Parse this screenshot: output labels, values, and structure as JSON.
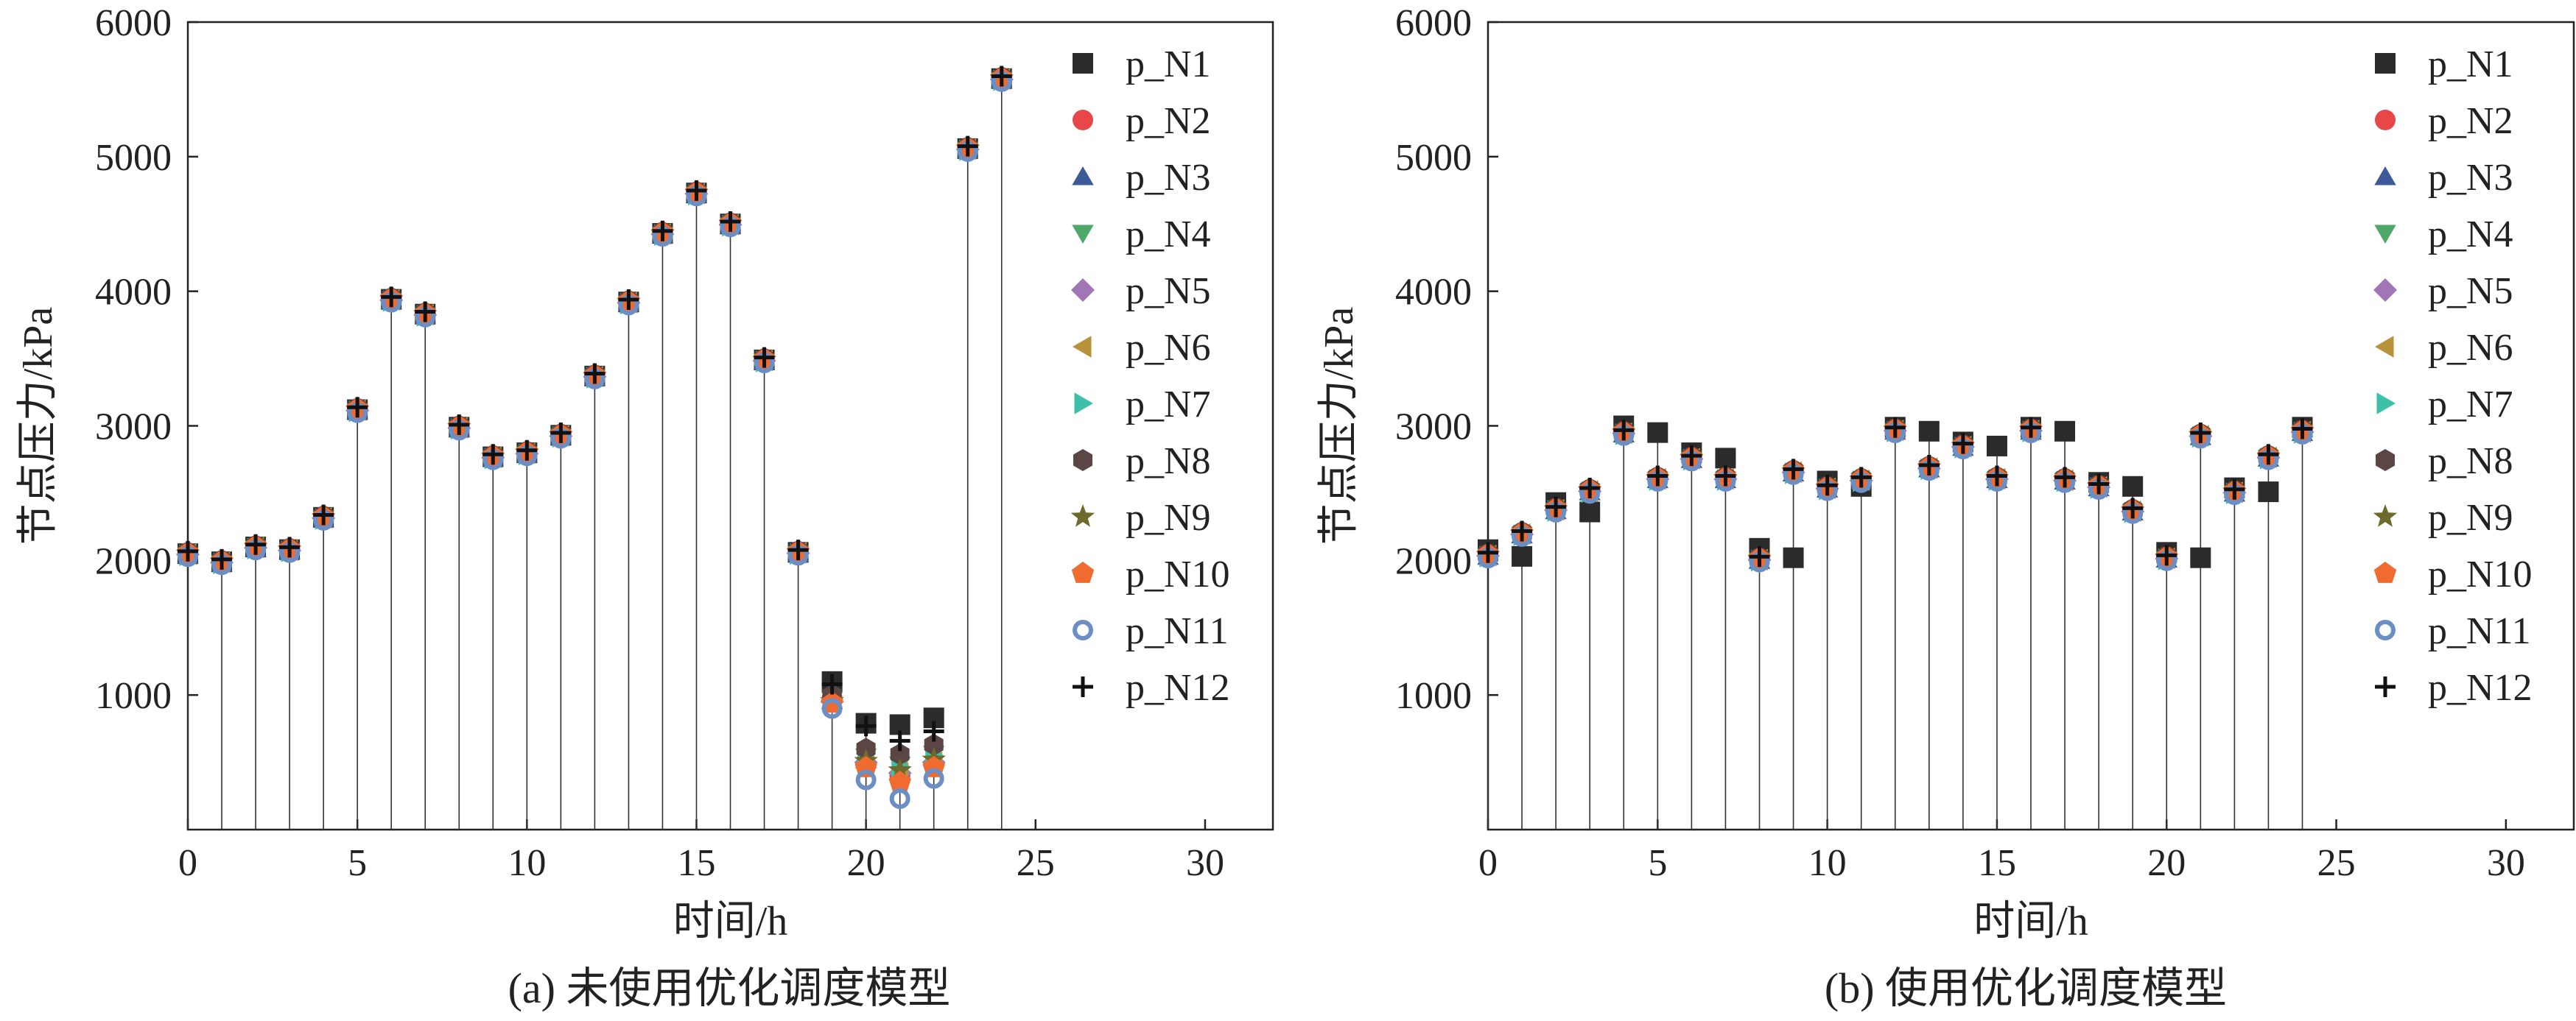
{
  "chart_data": [
    {
      "type": "scatter",
      "caption": "(a) 未使用优化调度模型",
      "xlabel": "时间/h",
      "ylabel": "节点压力/kPa",
      "xlim": [
        0,
        32
      ],
      "ylim": [
        0,
        6000
      ],
      "xticks": [
        0,
        5,
        10,
        15,
        20,
        25,
        30
      ],
      "yticks": [
        1000,
        2000,
        3000,
        4000,
        5000,
        6000
      ],
      "drop_lines": true,
      "legend_position": "top-right",
      "x": [
        0,
        1,
        2,
        3,
        4,
        5,
        6,
        7,
        8,
        9,
        10,
        11,
        12,
        13,
        14,
        15,
        16,
        17,
        18,
        19,
        20,
        21,
        22,
        23,
        24
      ],
      "base": [
        2050,
        1990,
        2100,
        2080,
        2320,
        3120,
        3940,
        3830,
        2990,
        2770,
        2800,
        2930,
        3370,
        3920,
        4430,
        4730,
        4500,
        3490,
        2060,
        900,
        380,
        250,
        390,
        5060,
        5580
      ],
      "low_hour_overrides": {
        "x": [
          19,
          20,
          21,
          22
        ],
        "p_N1": [
          1100,
          790,
          780,
          830
        ],
        "p_N2": [
          980,
          480,
          380,
          480
        ],
        "p_N3": [
          960,
          520,
          460,
          540
        ],
        "p_N4": [
          960,
          540,
          480,
          560
        ],
        "p_N5": [
          950,
          500,
          420,
          500
        ],
        "p_N6": [
          955,
          500,
          420,
          500
        ],
        "p_N7": [
          960,
          530,
          470,
          550
        ],
        "p_N8": [
          1000,
          600,
          560,
          630
        ],
        "p_N9": [
          955,
          510,
          440,
          520
        ],
        "p_N10": [
          940,
          460,
          350,
          460
        ],
        "p_N11": [
          900,
          370,
          230,
          380
        ],
        "p_N12": [
          1080,
          770,
          660,
          730
        ]
      }
    },
    {
      "type": "scatter",
      "caption": "(b) 使用优化调度模型",
      "xlabel": "时间/h",
      "ylabel": "节点压力/kPa",
      "xlim": [
        0,
        32
      ],
      "ylim": [
        0,
        6000
      ],
      "xticks": [
        0,
        5,
        10,
        15,
        20,
        25,
        30
      ],
      "yticks": [
        1000,
        2000,
        3000,
        4000,
        5000,
        6000
      ],
      "drop_lines": true,
      "legend_position": "top-right",
      "x": [
        0,
        1,
        2,
        3,
        4,
        5,
        6,
        7,
        8,
        9,
        10,
        11,
        12,
        13,
        14,
        15,
        16,
        17,
        18,
        19,
        20,
        21,
        22,
        23,
        24
      ],
      "base": [
        2040,
        2200,
        2380,
        2520,
        2950,
        2610,
        2760,
        2610,
        2010,
        2660,
        2540,
        2600,
        2970,
        2690,
        2850,
        2610,
        2970,
        2600,
        2550,
        2370,
        2020,
        2930,
        2510,
        2770,
        2960
      ],
      "p_N1": [
        2080,
        2030,
        2430,
        2360,
        3000,
        2950,
        2800,
        2760,
        2090,
        2020,
        2590,
        2550,
        2990,
        2960,
        2880,
        2850,
        2990,
        2960,
        2580,
        2550,
        2060,
        2020,
        2540,
        2510,
        2990
      ]
    }
  ],
  "legend": {
    "series": [
      {
        "name": "p_N1",
        "color": "#2b2b2b",
        "marker": "square"
      },
      {
        "name": "p_N2",
        "color": "#e8474a",
        "marker": "circle"
      },
      {
        "name": "p_N3",
        "color": "#3d5a98",
        "marker": "triangle-up"
      },
      {
        "name": "p_N4",
        "color": "#4fa76a",
        "marker": "triangle-down"
      },
      {
        "name": "p_N5",
        "color": "#a176b5",
        "marker": "diamond"
      },
      {
        "name": "p_N6",
        "color": "#b8923a",
        "marker": "triangle-left"
      },
      {
        "name": "p_N7",
        "color": "#3dbfa8",
        "marker": "triangle-right"
      },
      {
        "name": "p_N8",
        "color": "#5b4545",
        "marker": "hexagon"
      },
      {
        "name": "p_N9",
        "color": "#6e6a2c",
        "marker": "star"
      },
      {
        "name": "p_N10",
        "color": "#ef6b2f",
        "marker": "pentagon"
      },
      {
        "name": "p_N11",
        "color": "#6b8fc4",
        "marker": "ring"
      },
      {
        "name": "p_N12",
        "color": "#111111",
        "marker": "plus"
      }
    ]
  }
}
